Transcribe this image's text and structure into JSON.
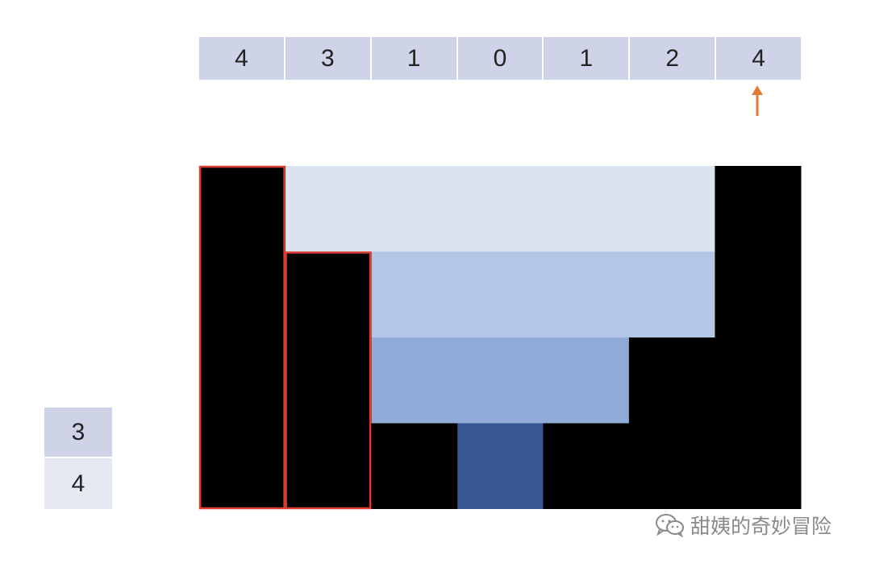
{
  "heights": [
    4,
    3,
    1,
    0,
    1,
    2,
    4
  ],
  "pointer": {
    "index": 6,
    "color": "#e07b39"
  },
  "water_levels": [
    {
      "from": 1,
      "to": 6,
      "height": 4,
      "color": "#dce3f0"
    },
    {
      "from": 2,
      "to": 6,
      "height": 3,
      "color": "#b4c6e5"
    },
    {
      "from": 2,
      "to": 5,
      "height": 2,
      "color": "#91abd8"
    },
    {
      "from": 3,
      "to": 4,
      "height": 1,
      "color": "#385895"
    }
  ],
  "highlighted_bars": [
    0,
    1
  ],
  "colors": {
    "bar": "#000000",
    "highlight_border": "#e03a2e",
    "array_cell": "#ced3e7"
  },
  "stack": {
    "items": [
      "3",
      "4"
    ]
  },
  "watermark": {
    "text": "甜姨的奇妙冒险",
    "icon": "wechat-icon"
  }
}
